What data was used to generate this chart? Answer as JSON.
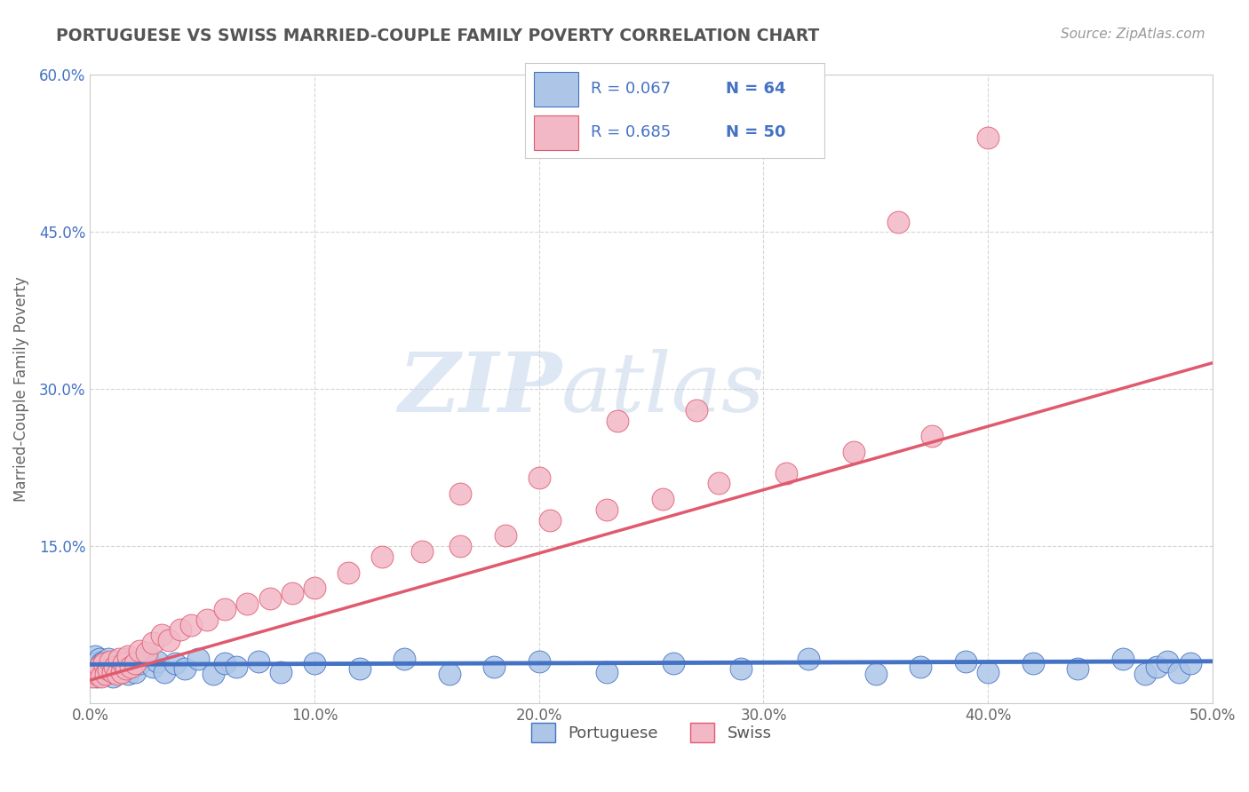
{
  "title": "PORTUGUESE VS SWISS MARRIED-COUPLE FAMILY POVERTY CORRELATION CHART",
  "source": "Source: ZipAtlas.com",
  "ylabel": "Married-Couple Family Poverty",
  "xlim": [
    0,
    0.5
  ],
  "ylim": [
    0,
    0.6
  ],
  "xticks": [
    0.0,
    0.1,
    0.2,
    0.3,
    0.4,
    0.5
  ],
  "xticklabels": [
    "0.0%",
    "10.0%",
    "20.0%",
    "30.0%",
    "40.0%",
    "50.0%"
  ],
  "yticks": [
    0.0,
    0.15,
    0.3,
    0.45,
    0.6
  ],
  "yticklabels": [
    "",
    "15.0%",
    "30.0%",
    "45.0%",
    "60.0%"
  ],
  "portuguese_color": "#adc6e8",
  "swiss_color": "#f2b8c6",
  "line_portuguese_color": "#4472c4",
  "line_swiss_color": "#e05a6e",
  "legend_text_color": "#4472c4",
  "r_portuguese": "R = 0.067",
  "n_portuguese": "N = 64",
  "r_swiss": "R = 0.685",
  "n_swiss": "N = 50",
  "background_color": "#ffffff",
  "watermark_zip": "ZIP",
  "watermark_atlas": "atlas",
  "title_color": "#555555",
  "axis_color": "#cccccc",
  "grid_color": "#cccccc",
  "portuguese_x": [
    0.001,
    0.001,
    0.002,
    0.002,
    0.003,
    0.003,
    0.004,
    0.004,
    0.005,
    0.005,
    0.006,
    0.006,
    0.007,
    0.007,
    0.008,
    0.008,
    0.009,
    0.01,
    0.01,
    0.011,
    0.012,
    0.013,
    0.014,
    0.015,
    0.016,
    0.017,
    0.018,
    0.019,
    0.02,
    0.022,
    0.025,
    0.028,
    0.03,
    0.033,
    0.038,
    0.042,
    0.048,
    0.055,
    0.06,
    0.065,
    0.075,
    0.085,
    0.1,
    0.12,
    0.14,
    0.16,
    0.18,
    0.2,
    0.23,
    0.26,
    0.29,
    0.32,
    0.35,
    0.37,
    0.39,
    0.4,
    0.42,
    0.44,
    0.46,
    0.47,
    0.475,
    0.48,
    0.485,
    0.49
  ],
  "portuguese_y": [
    0.035,
    0.04,
    0.03,
    0.045,
    0.025,
    0.038,
    0.032,
    0.042,
    0.028,
    0.038,
    0.035,
    0.04,
    0.03,
    0.038,
    0.033,
    0.042,
    0.03,
    0.038,
    0.025,
    0.035,
    0.04,
    0.03,
    0.038,
    0.033,
    0.042,
    0.028,
    0.035,
    0.04,
    0.03,
    0.038,
    0.045,
    0.035,
    0.04,
    0.03,
    0.038,
    0.033,
    0.042,
    0.028,
    0.038,
    0.035,
    0.04,
    0.03,
    0.038,
    0.033,
    0.042,
    0.028,
    0.035,
    0.04,
    0.03,
    0.038,
    0.033,
    0.042,
    0.028,
    0.035,
    0.04,
    0.03,
    0.038,
    0.033,
    0.042,
    0.028,
    0.035,
    0.04,
    0.03,
    0.038
  ],
  "swiss_x": [
    0.001,
    0.002,
    0.003,
    0.004,
    0.005,
    0.006,
    0.007,
    0.008,
    0.009,
    0.01,
    0.011,
    0.012,
    0.013,
    0.014,
    0.015,
    0.016,
    0.017,
    0.018,
    0.02,
    0.022,
    0.025,
    0.028,
    0.032,
    0.035,
    0.04,
    0.045,
    0.052,
    0.06,
    0.07,
    0.08,
    0.09,
    0.1,
    0.115,
    0.13,
    0.148,
    0.165,
    0.185,
    0.205,
    0.23,
    0.255,
    0.28,
    0.31,
    0.34,
    0.375,
    0.165,
    0.2,
    0.235,
    0.27,
    0.36,
    0.4
  ],
  "swiss_y": [
    0.025,
    0.03,
    0.028,
    0.035,
    0.025,
    0.038,
    0.028,
    0.032,
    0.04,
    0.03,
    0.035,
    0.028,
    0.042,
    0.03,
    0.038,
    0.033,
    0.045,
    0.035,
    0.038,
    0.05,
    0.048,
    0.058,
    0.065,
    0.06,
    0.07,
    0.075,
    0.08,
    0.09,
    0.095,
    0.1,
    0.105,
    0.11,
    0.125,
    0.14,
    0.145,
    0.15,
    0.16,
    0.175,
    0.185,
    0.195,
    0.21,
    0.22,
    0.24,
    0.255,
    0.2,
    0.215,
    0.27,
    0.28,
    0.46,
    0.54
  ],
  "swiss_line_x0": 0.0,
  "swiss_line_y0": 0.022,
  "swiss_line_x1": 0.5,
  "swiss_line_y1": 0.325,
  "port_line_x0": 0.0,
  "port_line_y0": 0.037,
  "port_line_x1": 0.5,
  "port_line_y1": 0.04
}
